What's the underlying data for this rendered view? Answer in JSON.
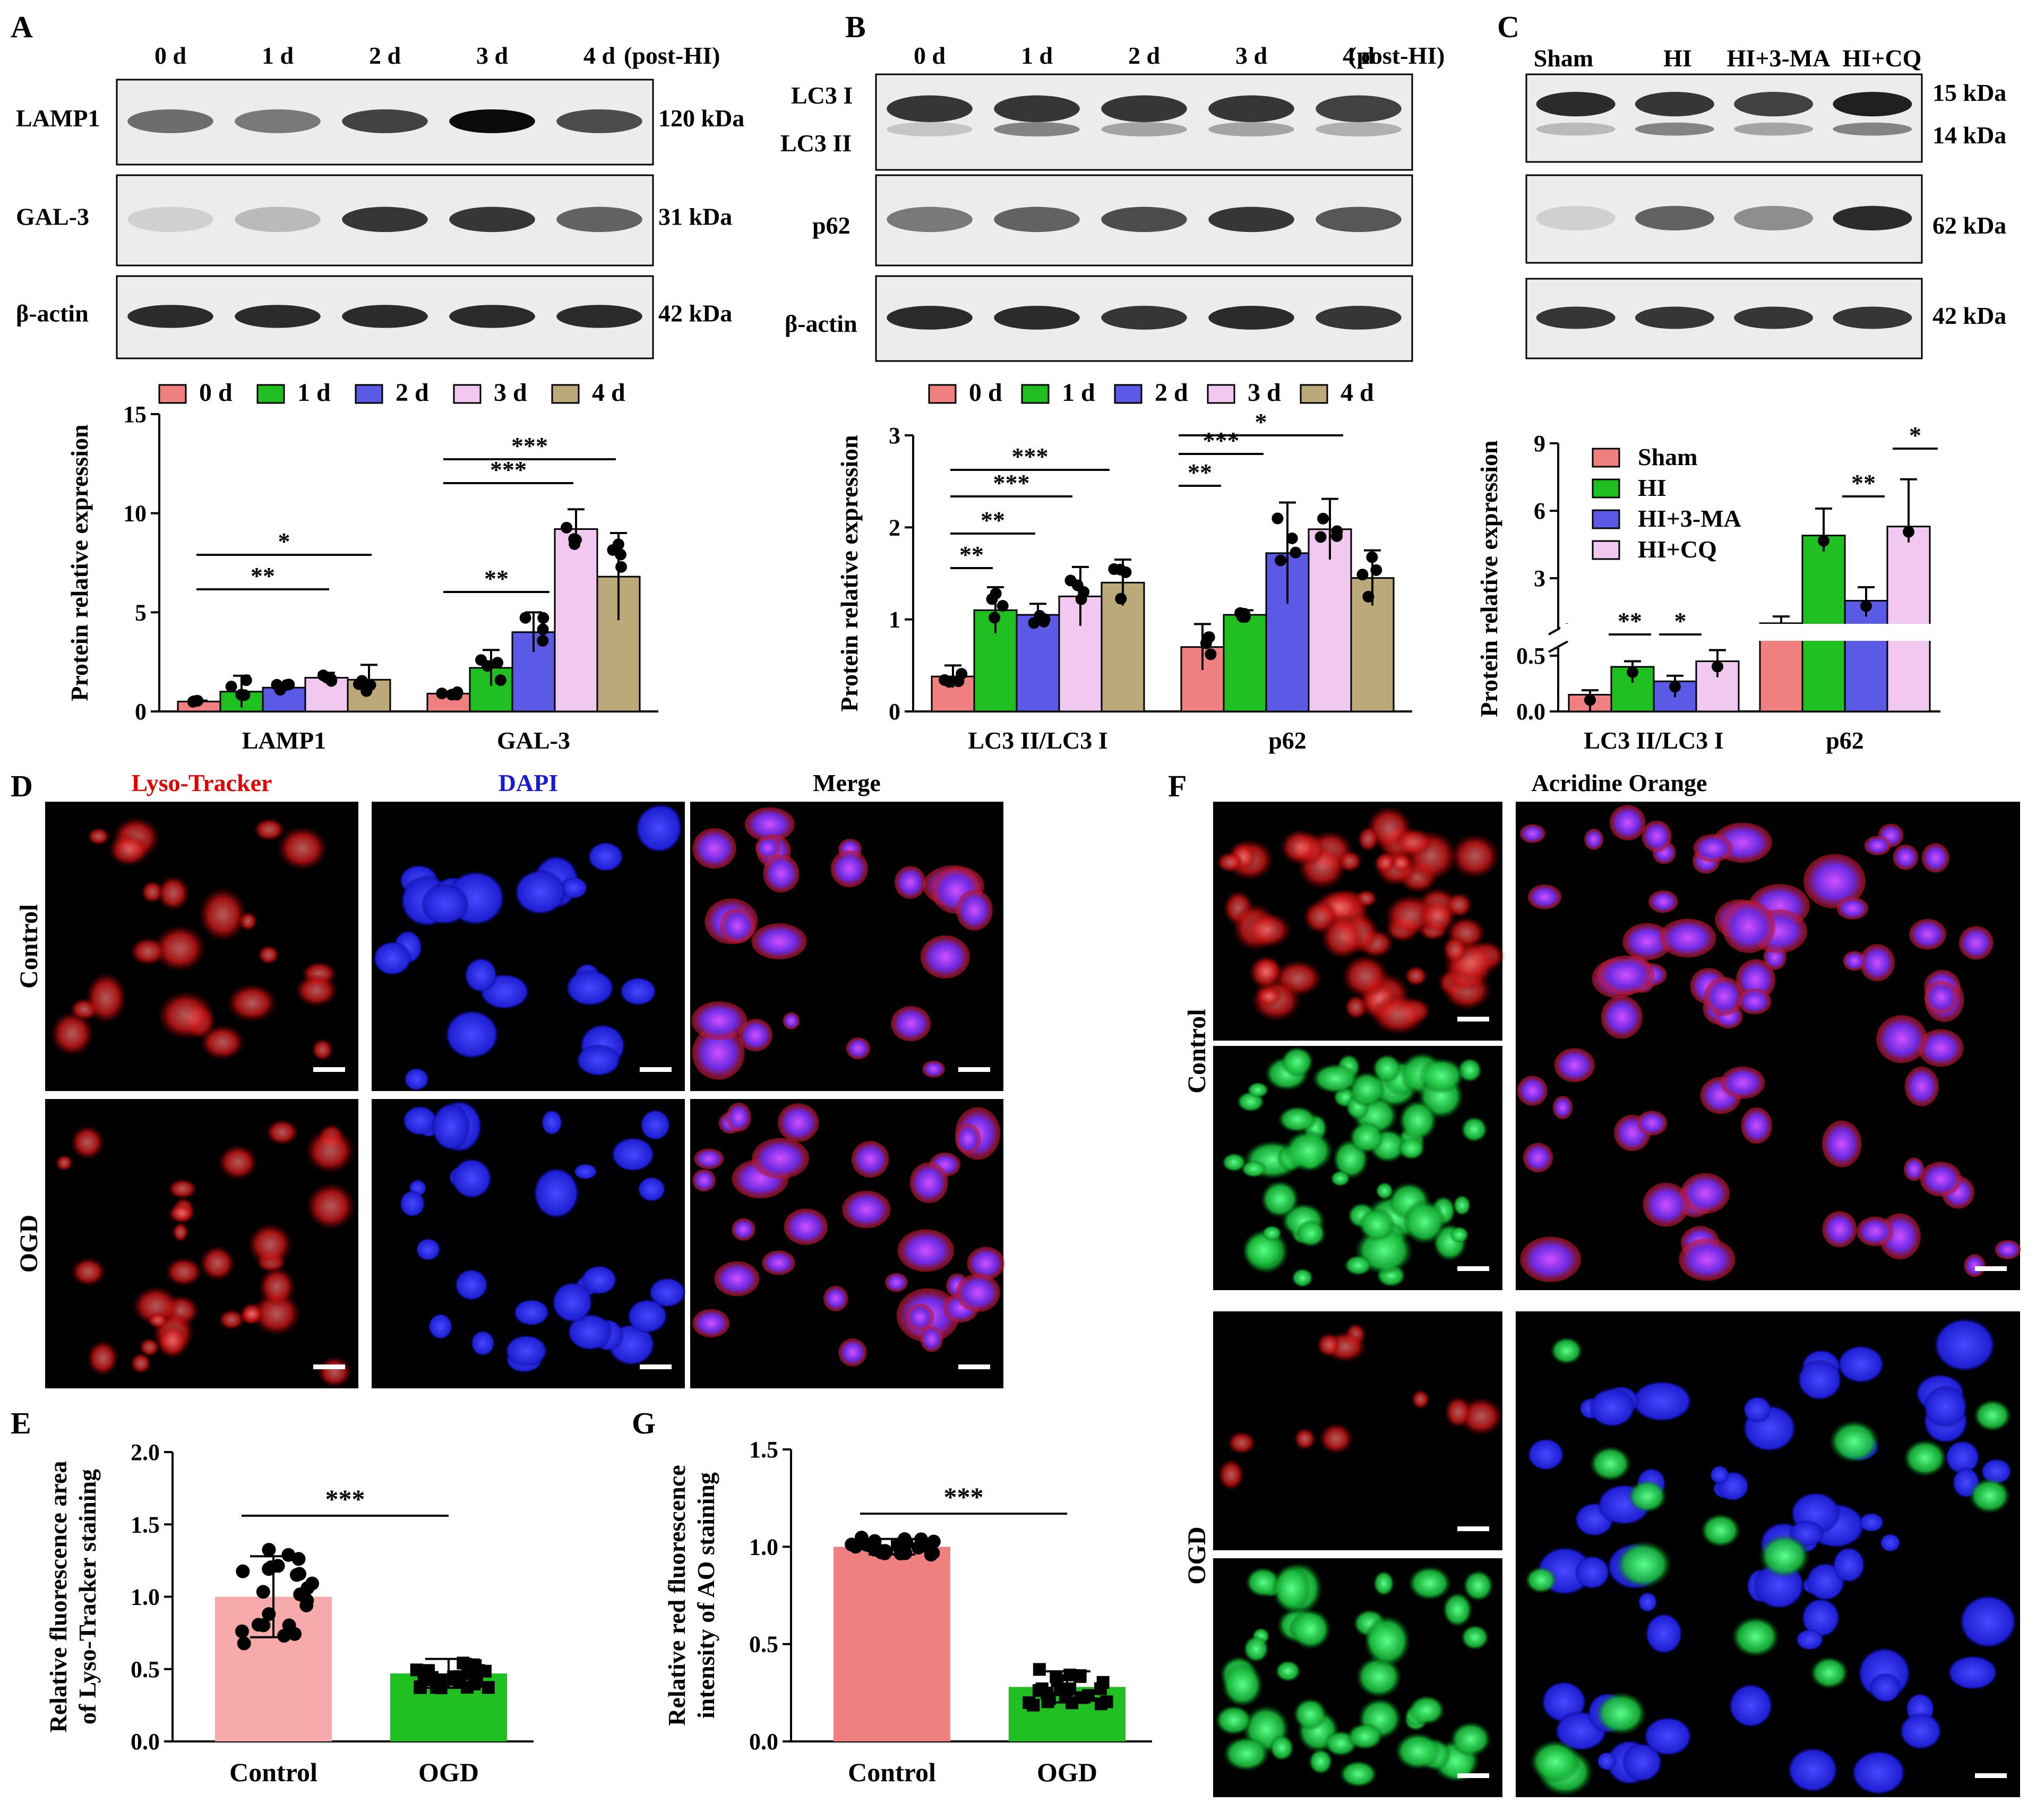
{
  "panels": {
    "A": {
      "letter": "A",
      "time_labels": [
        "0 d",
        "1 d",
        "2 d",
        "3 d",
        "4 d"
      ],
      "post_label": "(post-HI)",
      "blots": [
        {
          "name": "LAMP1",
          "kda": "120 kDa",
          "intensity": [
            0.55,
            0.5,
            0.75,
            1.0,
            0.7
          ],
          "secondary": [
            0,
            0,
            0,
            0,
            0
          ]
        },
        {
          "name": "GAL-3",
          "kda": "31 kDa",
          "intensity": [
            0.1,
            0.2,
            0.8,
            0.8,
            0.6
          ],
          "secondary": [
            0,
            0,
            0,
            0,
            0
          ]
        },
        {
          "name": "β-actin",
          "kda": "42 kDa",
          "intensity": [
            0.85,
            0.85,
            0.85,
            0.85,
            0.85
          ],
          "secondary": [
            0,
            0,
            0,
            0,
            0
          ]
        }
      ],
      "legend": [
        "0 d",
        "1 d",
        "2 d",
        "3 d",
        "4 d"
      ]
    },
    "B": {
      "letter": "B",
      "time_labels": [
        "0 d",
        "1 d",
        "2 d",
        "3 d",
        "4 d"
      ],
      "post_label": "(post-HI)",
      "blots": [
        {
          "name": "LC3 I",
          "name2": "LC3 II",
          "kda": "",
          "intensity": [
            0.8,
            0.8,
            0.8,
            0.8,
            0.75
          ],
          "secondary": [
            0.15,
            0.45,
            0.3,
            0.3,
            0.25
          ]
        },
        {
          "name": "p62",
          "kda": "",
          "intensity": [
            0.5,
            0.6,
            0.7,
            0.8,
            0.65
          ],
          "secondary": [
            0,
            0,
            0,
            0,
            0
          ]
        },
        {
          "name": "β-actin",
          "kda": "",
          "intensity": [
            0.85,
            0.85,
            0.8,
            0.85,
            0.8
          ],
          "secondary": [
            0,
            0,
            0,
            0,
            0
          ]
        }
      ],
      "legend": [
        "0 d",
        "1 d",
        "2 d",
        "3 d",
        "4 d"
      ]
    },
    "C": {
      "letter": "C",
      "group_labels": [
        "Sham",
        "HI",
        "HI+3-MA",
        "HI+CQ"
      ],
      "blots": [
        {
          "name": "",
          "kda": "15 kDa",
          "kda2": "14 kDa",
          "intensity": [
            0.85,
            0.8,
            0.75,
            0.9
          ],
          "secondary": [
            0.2,
            0.45,
            0.3,
            0.45
          ]
        },
        {
          "name": "",
          "kda": "62 kDa",
          "intensity": [
            0.1,
            0.6,
            0.4,
            0.85
          ],
          "secondary": [
            0,
            0,
            0,
            0
          ]
        },
        {
          "name": "",
          "kda": "42 kDa",
          "intensity": [
            0.8,
            0.8,
            0.8,
            0.8
          ],
          "secondary": [
            0,
            0,
            0,
            0
          ]
        }
      ]
    },
    "D": {
      "letter": "D",
      "columns": [
        "Lyso-Tracker",
        "DAPI",
        "Merge"
      ],
      "rows": [
        "Control",
        "OGD"
      ]
    },
    "E": {
      "letter": "E"
    },
    "F": {
      "letter": "F",
      "title": "Acridine Orange",
      "rows": [
        "Control",
        "OGD"
      ]
    },
    "G": {
      "letter": "G"
    }
  },
  "chart_data": [
    {
      "panel": "A",
      "type": "bar",
      "categories": [
        "LAMP1",
        "GAL-3"
      ],
      "series": [
        {
          "name": "0 d",
          "values": [
            0.5,
            0.9
          ],
          "errors": [
            0.05,
            0.1
          ]
        },
        {
          "name": "1 d",
          "values": [
            1.0,
            2.2
          ],
          "errors": [
            0.8,
            0.9
          ]
        },
        {
          "name": "2 d",
          "values": [
            1.2,
            4.0
          ],
          "errors": [
            0.25,
            1.0
          ]
        },
        {
          "name": "3 d",
          "values": [
            1.7,
            9.2
          ],
          "errors": [
            0.25,
            1.0
          ]
        },
        {
          "name": "4 d",
          "values": [
            1.6,
            6.8
          ],
          "errors": [
            0.75,
            2.2
          ]
        }
      ],
      "ylabel": "Protein relative expression",
      "ylim": [
        0,
        15
      ],
      "yticks": [
        0,
        5,
        10,
        15
      ],
      "significance": [
        "**",
        "*",
        "**",
        "***",
        "***"
      ],
      "colors": [
        "#f08080",
        "#1fbf1f",
        "#5a5ae6",
        "#f0c8f0",
        "#bca97a"
      ]
    },
    {
      "panel": "B",
      "type": "bar",
      "categories": [
        "LC3 II/LC3 I",
        "p62"
      ],
      "series": [
        {
          "name": "0 d",
          "values": [
            0.38,
            0.7
          ],
          "errors": [
            0.12,
            0.25
          ]
        },
        {
          "name": "1 d",
          "values": [
            1.1,
            1.05
          ],
          "errors": [
            0.25,
            0.05
          ]
        },
        {
          "name": "2 d",
          "values": [
            1.05,
            1.72
          ],
          "errors": [
            0.12,
            0.55
          ]
        },
        {
          "name": "3 d",
          "values": [
            1.25,
            1.98
          ],
          "errors": [
            0.32,
            0.33
          ]
        },
        {
          "name": "4 d",
          "values": [
            1.4,
            1.45
          ],
          "errors": [
            0.25,
            0.3
          ]
        }
      ],
      "ylabel": "Protein relative expression",
      "ylim": [
        0,
        3
      ],
      "yticks": [
        0,
        1,
        2,
        3
      ],
      "significance": [
        "**",
        "**",
        "***",
        "***",
        "**",
        "***",
        "*"
      ],
      "colors": [
        "#f08080",
        "#1fbf1f",
        "#5a5ae6",
        "#f0c8f0",
        "#bca97a"
      ]
    },
    {
      "panel": "C",
      "type": "bar",
      "categories": [
        "LC3 II/LC3 I",
        "p62"
      ],
      "series": [
        {
          "name": "Sham",
          "values": [
            0.15,
            1.0
          ],
          "errors": [
            0.04,
            0.3
          ]
        },
        {
          "name": "HI",
          "values": [
            0.4,
            4.9
          ],
          "errors": [
            0.05,
            1.2
          ]
        },
        {
          "name": "HI+3-MA",
          "values": [
            0.27,
            2.0
          ],
          "errors": [
            0.05,
            0.6
          ]
        },
        {
          "name": "HI+CQ",
          "values": [
            0.45,
            5.3
          ],
          "errors": [
            0.1,
            2.1
          ]
        }
      ],
      "ylabel": "Protein relative expression",
      "yticks_lower": [
        "0.0",
        "0.5"
      ],
      "yticks_upper": [
        "3",
        "6",
        "9"
      ],
      "significance": [
        "**",
        "*",
        "**",
        "*"
      ],
      "colors": [
        "#f08080",
        "#1fbf1f",
        "#5a5ae6",
        "#f0c8f0"
      ]
    },
    {
      "panel": "E",
      "type": "bar",
      "categories": [
        "Control",
        "OGD"
      ],
      "values": [
        1.0,
        0.47
      ],
      "errors": [
        0.28,
        0.1
      ],
      "ylabel_line1": "Relative fluorescence area",
      "ylabel_line2": "of Lyso-Tracker staining",
      "ylim": [
        0,
        2.0
      ],
      "yticks": [
        "0.0",
        "0.5",
        "1.0",
        "1.5",
        "2.0"
      ],
      "significance": "***",
      "colors": [
        "#f6aaaa",
        "#1fbf1f"
      ]
    },
    {
      "panel": "G",
      "type": "bar",
      "categories": [
        "Control",
        "OGD"
      ],
      "values": [
        1.0,
        0.28
      ],
      "errors": [
        0.04,
        0.08
      ],
      "ylabel_line1": "Relative red fluorescence",
      "ylabel_line2": "intensity of AO staining",
      "ylim": [
        0,
        1.5
      ],
      "yticks": [
        "0.0",
        "0.5",
        "1.0",
        "1.5"
      ],
      "significance": "***",
      "colors": [
        "#f08080",
        "#1fbf1f"
      ]
    }
  ]
}
